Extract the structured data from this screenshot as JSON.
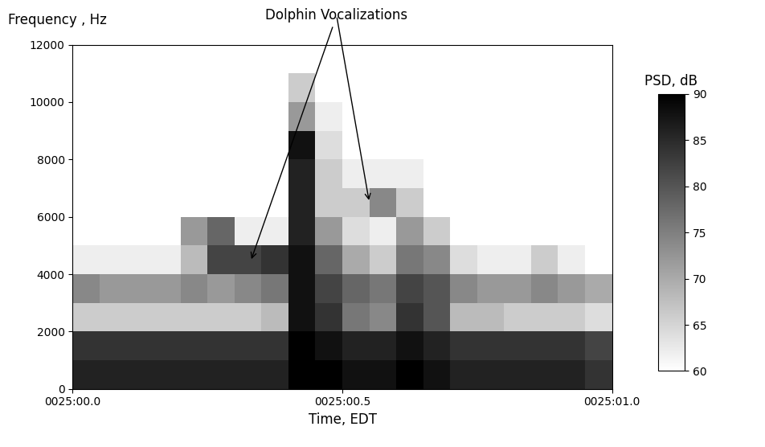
{
  "chart_data": {
    "type": "heatmap",
    "y_label": "Frequency , Hz",
    "x_label": "Time, EDT",
    "annotation": {
      "text": "Dolphin Vocalizations",
      "points": [
        [
          0.33,
          4450
        ],
        [
          0.55,
          6500
        ]
      ]
    },
    "xlim": [
      0,
      1
    ],
    "xticks": [
      {
        "value": 0,
        "label": "0025:00.0"
      },
      {
        "value": 0.5,
        "label": "0025:00.5"
      },
      {
        "value": 1,
        "label": "0025:01.0"
      }
    ],
    "ylim": [
      0,
      12000
    ],
    "yticks": [
      0,
      2000,
      4000,
      6000,
      8000,
      10000,
      12000
    ],
    "grid": false,
    "x_edges": [
      0,
      0.05,
      0.1,
      0.15,
      0.2,
      0.25,
      0.3,
      0.35,
      0.4,
      0.45,
      0.5,
      0.55,
      0.6,
      0.65,
      0.7,
      0.75,
      0.8,
      0.85,
      0.9,
      0.95,
      1.0
    ],
    "y_edges": [
      0,
      1000,
      2000,
      3000,
      4000,
      5000,
      6000,
      7000,
      8000,
      9000,
      10000,
      11000,
      12000
    ],
    "cells": [
      [
        86,
        86,
        86,
        86,
        86,
        86,
        86,
        86,
        90,
        90,
        88,
        88,
        90,
        88,
        86,
        86,
        86,
        86,
        86,
        84
      ],
      [
        84,
        84,
        84,
        84,
        84,
        84,
        84,
        84,
        90,
        88,
        86,
        86,
        88,
        86,
        84,
        84,
        84,
        84,
        84,
        82
      ],
      [
        66,
        66,
        66,
        66,
        66,
        66,
        66,
        68,
        88,
        84,
        76,
        74,
        84,
        80,
        68,
        68,
        66,
        66,
        66,
        64
      ],
      [
        74,
        72,
        72,
        72,
        74,
        72,
        74,
        76,
        88,
        82,
        78,
        76,
        82,
        80,
        74,
        72,
        72,
        74,
        72,
        70
      ],
      [
        62,
        62,
        62,
        62,
        68,
        82,
        82,
        84,
        88,
        78,
        70,
        66,
        76,
        74,
        64,
        62,
        62,
        66,
        62,
        60
      ],
      [
        60,
        60,
        60,
        60,
        72,
        78,
        62,
        62,
        86,
        72,
        64,
        62,
        72,
        66,
        60,
        60,
        60,
        60,
        60,
        60
      ],
      [
        60,
        60,
        60,
        60,
        60,
        60,
        60,
        60,
        86,
        66,
        66,
        74,
        66,
        60,
        60,
        60,
        60,
        60,
        60,
        60
      ],
      [
        60,
        60,
        60,
        60,
        60,
        60,
        60,
        60,
        86,
        66,
        62,
        62,
        62,
        60,
        60,
        60,
        60,
        60,
        60,
        60
      ],
      [
        60,
        60,
        60,
        60,
        60,
        60,
        60,
        60,
        88,
        64,
        60,
        60,
        60,
        60,
        60,
        60,
        60,
        60,
        60,
        60
      ],
      [
        60,
        60,
        60,
        60,
        60,
        60,
        60,
        60,
        72,
        62,
        60,
        60,
        60,
        60,
        60,
        60,
        60,
        60,
        60,
        60
      ],
      [
        60,
        60,
        60,
        60,
        60,
        60,
        60,
        60,
        66,
        60,
        60,
        60,
        60,
        60,
        60,
        60,
        60,
        60,
        60,
        60
      ],
      [
        60,
        60,
        60,
        60,
        60,
        60,
        60,
        60,
        60,
        60,
        60,
        60,
        60,
        60,
        60,
        60,
        60,
        60,
        60,
        60
      ]
    ],
    "colorbar": {
      "title": "PSD, dB",
      "range": [
        60,
        90
      ],
      "ticks": [
        60,
        65,
        70,
        75,
        80,
        85,
        90
      ]
    }
  }
}
